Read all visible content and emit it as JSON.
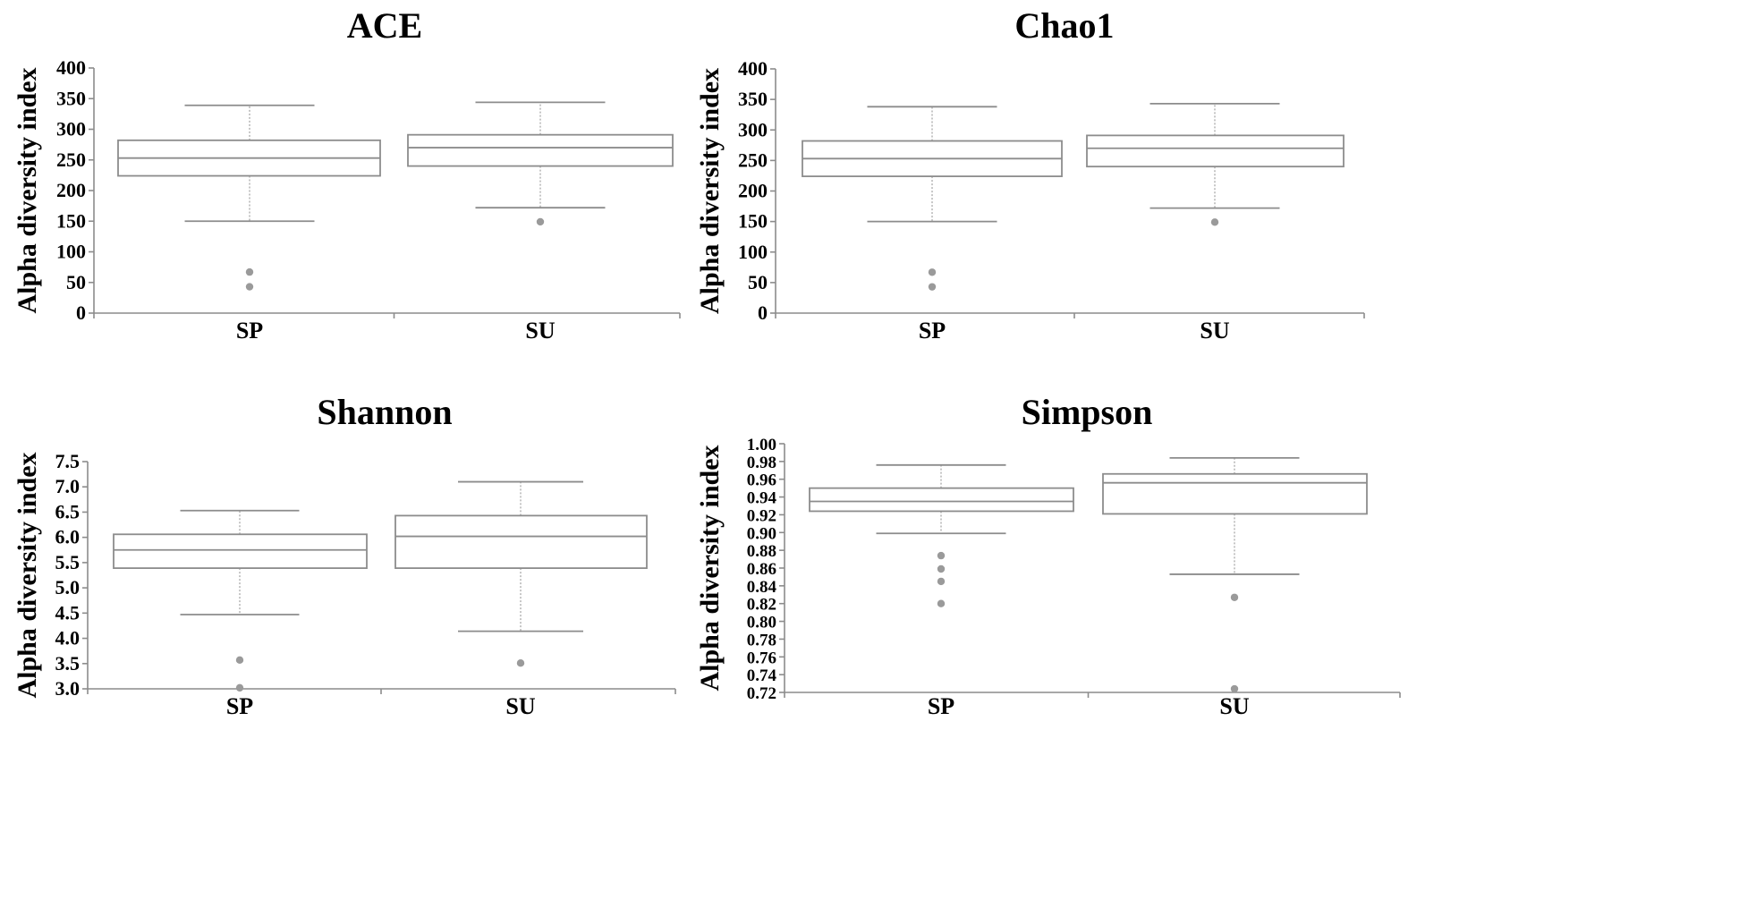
{
  "chart_data": [
    {
      "type": "box",
      "title": "ACE",
      "ylabel": "Alpha diversity index",
      "ylim": [
        0,
        400
      ],
      "yticks": [
        0,
        50,
        100,
        150,
        200,
        250,
        300,
        350,
        400
      ],
      "ytick_labels": [
        "0",
        "50",
        "100",
        "150",
        "200",
        "250",
        "300",
        "350",
        "400"
      ],
      "categories": [
        "SP",
        "SU"
      ],
      "boxes": [
        {
          "category": "SP",
          "whisker_low": 150,
          "q1": 224,
          "median": 253,
          "q3": 282,
          "whisker_high": 339,
          "outliers": [
            67,
            43
          ]
        },
        {
          "category": "SU",
          "whisker_low": 172,
          "q1": 240,
          "median": 270,
          "q3": 291,
          "whisker_high": 344,
          "outliers": [
            149
          ]
        }
      ]
    },
    {
      "type": "box",
      "title": "Chao1",
      "ylabel": "Alpha diversity index",
      "ylim": [
        0,
        400
      ],
      "yticks": [
        0,
        50,
        100,
        150,
        200,
        250,
        300,
        350,
        400
      ],
      "ytick_labels": [
        "0",
        "50",
        "100",
        "150",
        "200",
        "250",
        "300",
        "350",
        "400"
      ],
      "categories": [
        "SP",
        "SU"
      ],
      "boxes": [
        {
          "category": "SP",
          "whisker_low": 150,
          "q1": 224,
          "median": 253,
          "q3": 282,
          "whisker_high": 338,
          "outliers": [
            67,
            43
          ]
        },
        {
          "category": "SU",
          "whisker_low": 172,
          "q1": 240,
          "median": 270,
          "q3": 291,
          "whisker_high": 343,
          "outliers": [
            149
          ]
        }
      ]
    },
    {
      "type": "box",
      "title": "Shannon",
      "ylabel": "Alpha diversity index",
      "ylim": [
        3.0,
        7.5
      ],
      "yticks": [
        3.0,
        3.5,
        4.0,
        4.5,
        5.0,
        5.5,
        6.0,
        6.5,
        7.0,
        7.5
      ],
      "ytick_labels": [
        "3.0",
        "3.5",
        "4.0",
        "4.5",
        "5.0",
        "5.5",
        "6.0",
        "6.5",
        "7.0",
        "7.5"
      ],
      "categories": [
        "SP",
        "SU"
      ],
      "boxes": [
        {
          "category": "SP",
          "whisker_low": 4.47,
          "q1": 5.39,
          "median": 5.75,
          "q3": 6.06,
          "whisker_high": 6.53,
          "outliers": [
            3.57,
            3.02
          ]
        },
        {
          "category": "SU",
          "whisker_low": 4.14,
          "q1": 5.39,
          "median": 6.02,
          "q3": 6.43,
          "whisker_high": 7.1,
          "outliers": [
            3.51
          ]
        }
      ]
    },
    {
      "type": "box",
      "title": "Simpson",
      "ylabel": "Alpha diversity index",
      "ylim": [
        0.72,
        1.0
      ],
      "yticks": [
        0.72,
        0.74,
        0.76,
        0.78,
        0.8,
        0.82,
        0.84,
        0.86,
        0.88,
        0.9,
        0.92,
        0.94,
        0.96,
        0.98,
        1.0
      ],
      "ytick_labels": [
        "0.72",
        "0.74",
        "0.76",
        "0.78",
        "0.80",
        "0.82",
        "0.84",
        "0.86",
        "0.88",
        "0.90",
        "0.92",
        "0.94",
        "0.96",
        "0.98",
        "1.00"
      ],
      "categories": [
        "SP",
        "SU"
      ],
      "boxes": [
        {
          "category": "SP",
          "whisker_low": 0.899,
          "q1": 0.924,
          "median": 0.935,
          "q3": 0.95,
          "whisker_high": 0.976,
          "outliers": [
            0.874,
            0.859,
            0.845,
            0.82
          ]
        },
        {
          "category": "SU",
          "whisker_low": 0.853,
          "q1": 0.921,
          "median": 0.956,
          "q3": 0.966,
          "whisker_high": 0.984,
          "outliers": [
            0.827,
            0.724
          ]
        }
      ]
    }
  ]
}
